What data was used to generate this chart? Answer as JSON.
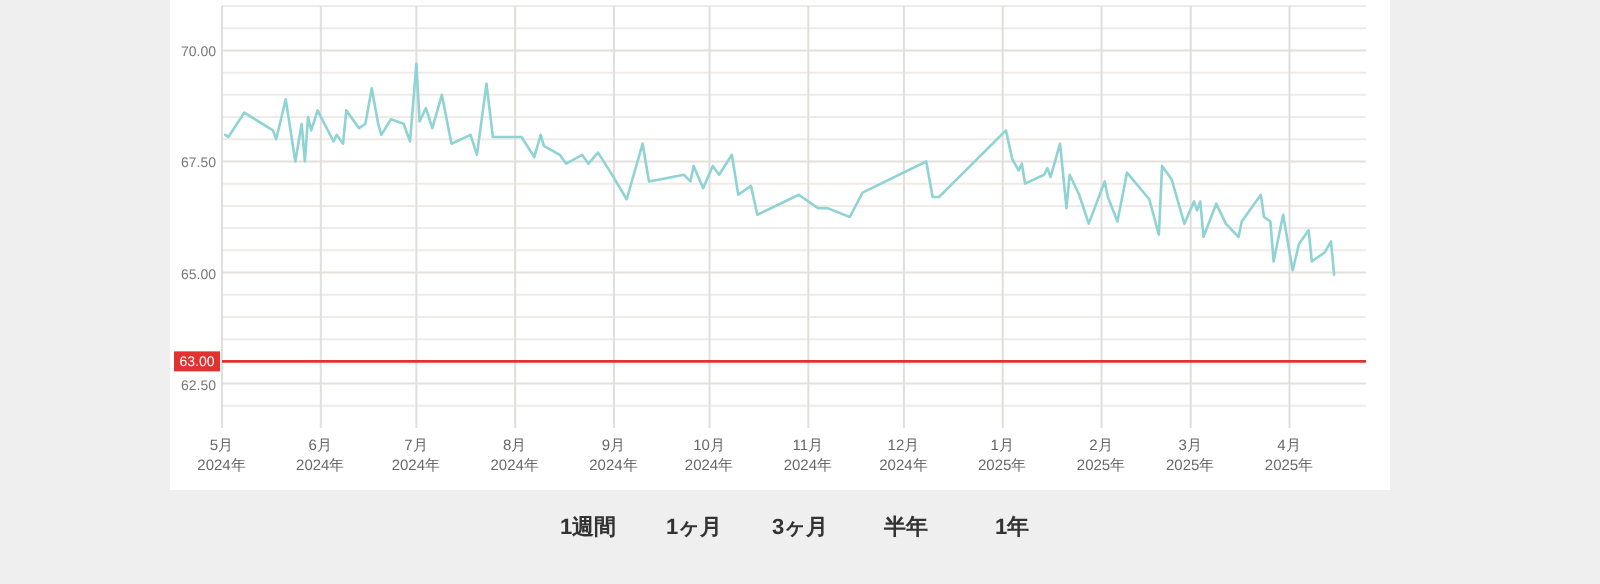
{
  "chart_data": {
    "type": "line",
    "xlim": [
      "2024-05-01",
      "2025-04-25"
    ],
    "ylim": [
      61.5,
      71
    ],
    "xticks": [
      {
        "value": "2024-05-01",
        "label": "5月\n2024年"
      },
      {
        "value": "2024-06-01",
        "label": "6月\n2024年"
      },
      {
        "value": "2024-07-01",
        "label": "7月\n2024年"
      },
      {
        "value": "2024-08-01",
        "label": "8月\n2024年"
      },
      {
        "value": "2024-09-01",
        "label": "9月\n2024年"
      },
      {
        "value": "2024-10-01",
        "label": "10月\n2024年"
      },
      {
        "value": "2024-11-01",
        "label": "11月\n2024年"
      },
      {
        "value": "2024-12-01",
        "label": "12月\n2024年"
      },
      {
        "value": "2025-01-01",
        "label": "1月\n2025年"
      },
      {
        "value": "2025-02-01",
        "label": "2月\n2025年"
      },
      {
        "value": "2025-03-01",
        "label": "3月\n2025年"
      },
      {
        "value": "2025-04-01",
        "label": "4月\n2025年"
      }
    ],
    "yticks": [
      {
        "value": 62,
        "label": null
      },
      {
        "value": 62.5,
        "label": "62.50"
      },
      {
        "value": 63,
        "label": null
      },
      {
        "value": 63.5,
        "label": null
      },
      {
        "value": 64,
        "label": null
      },
      {
        "value": 64.5,
        "label": null
      },
      {
        "value": 65,
        "label": "65.00"
      },
      {
        "value": 65.5,
        "label": null
      },
      {
        "value": 66,
        "label": null
      },
      {
        "value": 66.5,
        "label": null
      },
      {
        "value": 67,
        "label": null
      },
      {
        "value": 67.5,
        "label": "67.50"
      },
      {
        "value": 68,
        "label": null
      },
      {
        "value": 68.5,
        "label": null
      },
      {
        "value": 69,
        "label": null
      },
      {
        "value": 69.5,
        "label": null
      },
      {
        "value": 70,
        "label": "70.00"
      },
      {
        "value": 70.5,
        "label": null
      },
      {
        "value": 71,
        "label": null
      }
    ],
    "grid": true,
    "marker": "none",
    "line_style": "solid",
    "ref_lines": [
      {
        "axis": "y",
        "value": 63,
        "label": "63.00",
        "color": "#e0322f",
        "line_style": "solid"
      }
    ],
    "series": [
      {
        "color": "#8fd3d4",
        "x": [
          "2024-05-02",
          "2024-05-03",
          "2024-05-08",
          "2024-05-17",
          "2024-05-18",
          "2024-05-21",
          "2024-05-24",
          "2024-05-26",
          "2024-05-27",
          "2024-05-28",
          "2024-05-29",
          "2024-05-31",
          "2024-06-05",
          "2024-06-06",
          "2024-06-08",
          "2024-06-09",
          "2024-06-13",
          "2024-06-15",
          "2024-06-17",
          "2024-06-19",
          "2024-06-20",
          "2024-06-23",
          "2024-06-27",
          "2024-06-29",
          "2024-07-01",
          "2024-07-02",
          "2024-07-04",
          "2024-07-06",
          "2024-07-09",
          "2024-07-12",
          "2024-07-18",
          "2024-07-20",
          "2024-07-23",
          "2024-07-25",
          "2024-08-03",
          "2024-08-07",
          "2024-08-09",
          "2024-08-10",
          "2024-08-15",
          "2024-08-17",
          "2024-08-22",
          "2024-08-24",
          "2024-08-27",
          "2024-08-31",
          "2024-09-05",
          "2024-09-10",
          "2024-09-12",
          "2024-09-23",
          "2024-09-25",
          "2024-09-26",
          "2024-09-29",
          "2024-10-02",
          "2024-10-04",
          "2024-10-08",
          "2024-10-10",
          "2024-10-14",
          "2024-10-16",
          "2024-10-29",
          "2024-11-04",
          "2024-11-07",
          "2024-11-14",
          "2024-11-18",
          "2024-12-08",
          "2024-12-10",
          "2024-12-12",
          "2025-01-02",
          "2025-01-04",
          "2025-01-06",
          "2025-01-07",
          "2025-01-08",
          "2025-01-14",
          "2025-01-15",
          "2025-01-16",
          "2025-01-19",
          "2025-01-21",
          "2025-01-22",
          "2025-01-25",
          "2025-01-28",
          "2025-02-02",
          "2025-02-03",
          "2025-02-06",
          "2025-02-09",
          "2025-02-16",
          "2025-02-19",
          "2025-02-20",
          "2025-02-23",
          "2025-02-27",
          "2025-03-02",
          "2025-03-03",
          "2025-03-04",
          "2025-03-05",
          "2025-03-09",
          "2025-03-12",
          "2025-03-16",
          "2025-03-17",
          "2025-03-23",
          "2025-03-24",
          "2025-03-26",
          "2025-03-27",
          "2025-03-30",
          "2025-04-02",
          "2025-04-04",
          "2025-04-07",
          "2025-04-08",
          "2025-04-12",
          "2025-04-14",
          "2025-04-15"
        ],
        "values": [
          68.1,
          68.05,
          68.6,
          68.2,
          68.0,
          68.9,
          67.5,
          68.35,
          67.5,
          68.5,
          68.2,
          68.65,
          67.95,
          68.1,
          67.9,
          68.65,
          68.25,
          68.35,
          69.15,
          68.35,
          68.1,
          68.45,
          68.35,
          67.95,
          69.7,
          68.4,
          68.7,
          68.25,
          69.0,
          67.9,
          68.1,
          67.65,
          69.25,
          68.05,
          68.05,
          67.6,
          68.1,
          67.85,
          67.65,
          67.45,
          67.65,
          67.45,
          67.7,
          67.25,
          66.65,
          67.9,
          67.05,
          67.2,
          67.05,
          67.4,
          66.9,
          67.4,
          67.2,
          67.65,
          66.75,
          66.95,
          66.3,
          66.75,
          66.45,
          66.45,
          66.25,
          66.8,
          67.5,
          66.7,
          66.7,
          68.2,
          67.55,
          67.3,
          67.45,
          67.0,
          67.2,
          67.35,
          67.15,
          67.9,
          66.45,
          67.2,
          66.75,
          66.1,
          67.05,
          66.7,
          66.15,
          67.25,
          66.65,
          65.85,
          67.4,
          67.1,
          66.1,
          66.6,
          66.4,
          66.6,
          65.8,
          66.55,
          66.1,
          65.8,
          66.15,
          66.75,
          66.25,
          66.15,
          65.25,
          66.3,
          65.05,
          65.65,
          65.95,
          65.25,
          65.45,
          65.7,
          64.95
        ]
      }
    ],
    "annotations": [
      "1週間",
      "1ヶ月",
      "3ヶ月",
      "半年",
      "1年"
    ]
  }
}
